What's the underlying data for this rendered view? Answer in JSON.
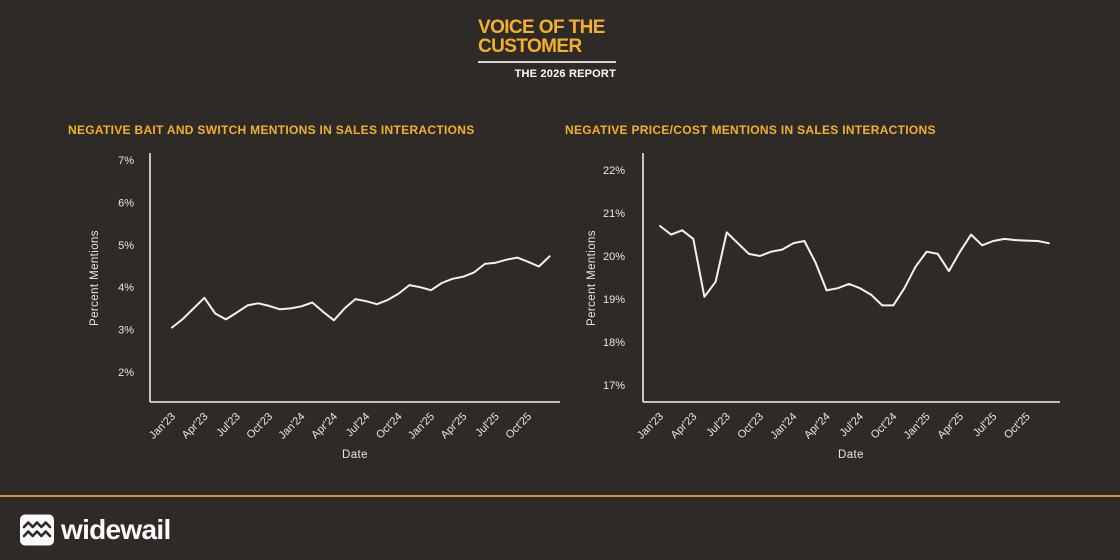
{
  "page": {
    "background": "#2e2a28",
    "accent_yellow": "#f3b02a",
    "divider_gold": "#c6982f",
    "text_light": "#e8e5e1",
    "line_white": "#f4f2ef"
  },
  "header": {
    "title_line1": "VOICE OF THE",
    "title_line2": "CUSTOMER",
    "subtitle": "THE 2026 REPORT"
  },
  "footer": {
    "brand": "widewail",
    "icon": "widewail-waves-icon"
  },
  "chart_data": [
    {
      "type": "line",
      "title": "NEGATIVE BAIT AND SWITCH MENTIONS IN SALES INTERACTIONS",
      "xlabel": "Date",
      "ylabel": "Percent Mentions",
      "x": [
        "Jan'23",
        "Feb'23",
        "Mar'23",
        "Apr'23",
        "May'23",
        "Jun'23",
        "Jul'23",
        "Aug'23",
        "Sep'23",
        "Oct'23",
        "Nov'23",
        "Dec'23",
        "Jan'24",
        "Feb'24",
        "Mar'24",
        "Apr'24",
        "May'24",
        "Jun'24",
        "Jul'24",
        "Aug'24",
        "Sep'24",
        "Oct'24",
        "Nov'24",
        "Dec'24",
        "Jan'25",
        "Feb'25",
        "Mar'25",
        "Apr'25",
        "May'25",
        "Jun'25",
        "Jul'25",
        "Aug'25",
        "Sep'25",
        "Oct'25",
        "Nov'25",
        "Dec'25"
      ],
      "x_tick_every": 3,
      "values": [
        3.05,
        3.25,
        3.5,
        3.75,
        3.38,
        3.24,
        3.4,
        3.57,
        3.62,
        3.56,
        3.48,
        3.5,
        3.55,
        3.64,
        3.42,
        3.22,
        3.5,
        3.72,
        3.67,
        3.6,
        3.7,
        3.85,
        4.05,
        4.0,
        3.93,
        4.1,
        4.2,
        4.25,
        4.35,
        4.55,
        4.58,
        4.65,
        4.7,
        4.6,
        4.49,
        4.73
      ],
      "y_ticks": [
        2,
        3,
        4,
        5,
        6,
        7
      ],
      "y_tick_labels": [
        "2%",
        "3%",
        "4%",
        "5%",
        "6%",
        "7%"
      ],
      "ylim": [
        1.29,
        7.17
      ],
      "grid": false,
      "legend": false,
      "line_color": "#f4f2ef"
    },
    {
      "type": "line",
      "title": "NEGATIVE PRICE/COST MENTIONS IN SALES INTERACTIONS",
      "xlabel": "Date",
      "ylabel": "Percent Mentions",
      "x": [
        "Jan'23",
        "Feb'23",
        "Mar'23",
        "Apr'23",
        "May'23",
        "Jun'23",
        "Jul'23",
        "Aug'23",
        "Sep'23",
        "Oct'23",
        "Nov'23",
        "Dec'23",
        "Jan'24",
        "Feb'24",
        "Mar'24",
        "Apr'24",
        "May'24",
        "Jun'24",
        "Jul'24",
        "Aug'24",
        "Sep'24",
        "Oct'24",
        "Nov'24",
        "Dec'24",
        "Jan'25",
        "Feb'25",
        "Mar'25",
        "Apr'25",
        "May'25",
        "Jun'25",
        "Jul'25",
        "Aug'25",
        "Sep'25",
        "Oct'25",
        "Nov'25",
        "Dec'25"
      ],
      "x_tick_every": 3,
      "values": [
        20.7,
        20.5,
        20.6,
        20.4,
        19.05,
        19.4,
        20.55,
        20.3,
        20.05,
        20.0,
        20.1,
        20.15,
        20.3,
        20.35,
        19.85,
        19.2,
        19.25,
        19.35,
        19.25,
        19.1,
        18.85,
        18.85,
        19.25,
        19.75,
        20.1,
        20.05,
        19.65,
        20.1,
        20.5,
        20.25,
        20.35,
        20.4,
        20.37,
        20.36,
        20.35,
        20.3
      ],
      "y_ticks": [
        17,
        18,
        19,
        20,
        21,
        22
      ],
      "y_tick_labels": [
        "17%",
        "18%",
        "19%",
        "20%",
        "21%",
        "22%"
      ],
      "ylim": [
        16.6,
        22.4
      ],
      "grid": false,
      "legend": false,
      "line_color": "#f4f2ef"
    }
  ]
}
